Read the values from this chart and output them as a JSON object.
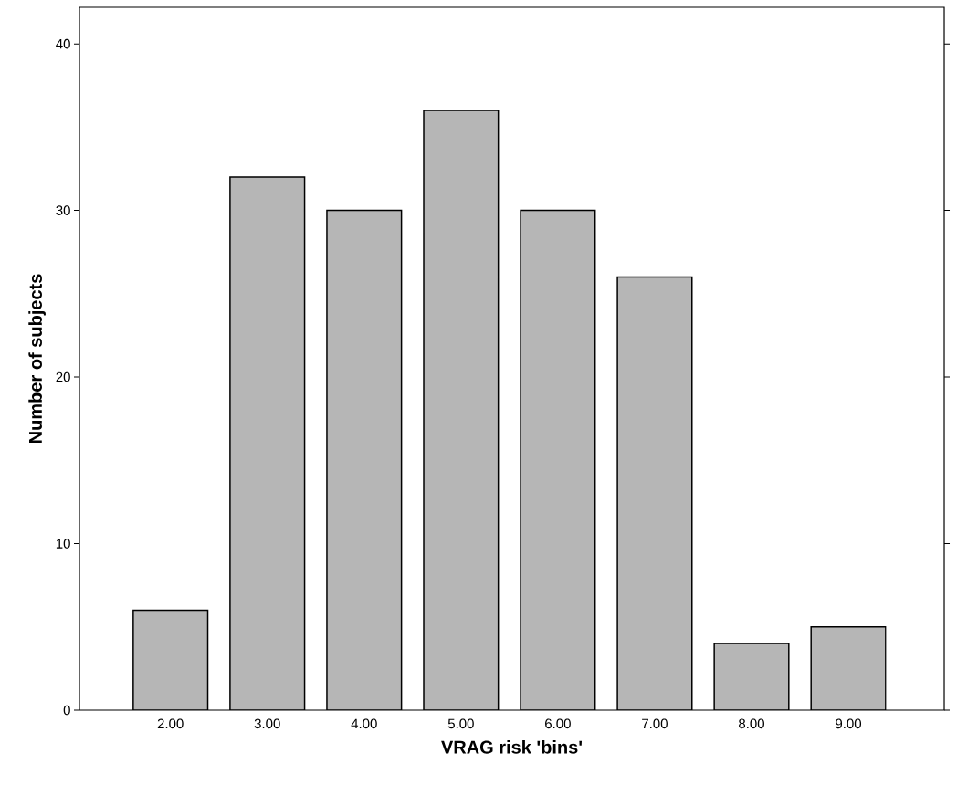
{
  "chart_data": {
    "type": "bar",
    "xlabel": "VRAG risk 'bins'",
    "ylabel": "Number of subjects",
    "categories": [
      "2.00",
      "3.00",
      "4.00",
      "5.00",
      "6.00",
      "7.00",
      "8.00",
      "9.00"
    ],
    "values": [
      6,
      32,
      30,
      36,
      30,
      26,
      4,
      5
    ],
    "color": "#b6b6b6",
    "ylim": [
      0,
      42.2
    ],
    "yticks": [
      0,
      10,
      20,
      30,
      40
    ]
  }
}
